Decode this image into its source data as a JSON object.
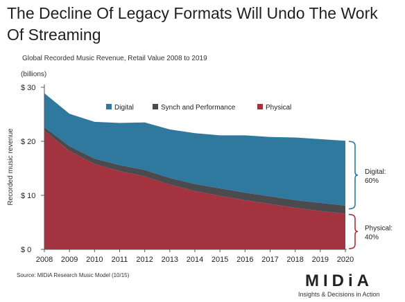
{
  "title": "The Decline Of Legacy Formats Will Undo The Work Of Streaming",
  "subtitle": "Global Recorded Music Revenue, Retail Value 2008 to 2019",
  "source": "Source: MIDiA Research Music Model (10/15)",
  "logo": {
    "wordmark": "MIDiA",
    "tagline": "Insights & Decisions in Action"
  },
  "colors": {
    "physical": "#a43340",
    "synch": "#4b4b4f",
    "digital": "#2f789e",
    "bracket": "#2f789e",
    "bracket_physical": "#a43340"
  },
  "chart_data": {
    "type": "area",
    "stacked": true,
    "x": [
      2008,
      2009,
      2010,
      2011,
      2012,
      2013,
      2014,
      2015,
      2016,
      2017,
      2018,
      2019,
      2020
    ],
    "series": [
      {
        "name": "Physical",
        "values": [
          22.0,
          18.2,
          15.8,
          14.5,
          13.5,
          12.0,
          10.8,
          9.9,
          9.1,
          8.4,
          7.7,
          7.1,
          6.6
        ]
      },
      {
        "name": "Synch and Performance",
        "values": [
          0.6,
          0.9,
          1.0,
          1.1,
          1.2,
          1.2,
          1.3,
          1.4,
          1.4,
          1.4,
          1.4,
          1.5,
          1.5
        ]
      },
      {
        "name": "Digital",
        "values": [
          6.3,
          6.0,
          6.8,
          7.8,
          8.8,
          9.0,
          9.4,
          9.8,
          10.6,
          11.0,
          11.6,
          11.8,
          12.0
        ]
      }
    ],
    "ylabel": "Recorded music revenue",
    "yunit": "(billions)",
    "ylim": [
      0,
      30
    ],
    "yticks": [
      "$ 0",
      "$ 10",
      "$ 20",
      "$ 30"
    ],
    "ytick_values": [
      0,
      10,
      20,
      30
    ],
    "xticks": [
      "2008",
      "2009",
      "2010",
      "2011",
      "2012",
      "2013",
      "2014",
      "2015",
      "2016",
      "2017",
      "2018",
      "2019",
      "2020"
    ],
    "legend": [
      "Digital",
      "Synch and Performance",
      "Physical"
    ],
    "legend_position": "top-center",
    "grid": false,
    "annotations": [
      {
        "label": "Digital:",
        "value": "60%"
      },
      {
        "label": "Physical:",
        "value": "40%"
      }
    ]
  }
}
